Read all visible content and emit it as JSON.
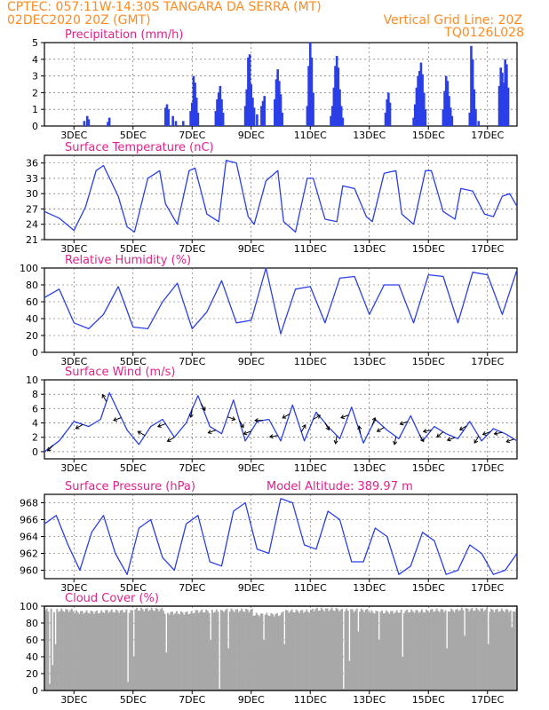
{
  "header": {
    "line1": "CPTEC:   057:11W-14:30S   TANGARA DA SERRA (MT)",
    "line2": "02DEC2020 20Z (GMT)",
    "grid_note": "Vertical Grid Line: 20Z",
    "code": "TQ0126L028"
  },
  "colors": {
    "header": "#ff8a1f",
    "titles": "#e0218a",
    "series": "#2a3fe8",
    "cloud": "#a8a8a8",
    "grid": "#555555"
  },
  "chart_data": [
    {
      "type": "bar",
      "title": "Precipitation (mm/h)",
      "xaxis": {
        "ticks": [
          "3DEC",
          "5DEC",
          "7DEC",
          "9DEC",
          "11DEC",
          "13DEC",
          "15DEC",
          "17DEC"
        ],
        "range_days": [
          0,
          15
        ]
      },
      "ylim": [
        0,
        5
      ],
      "yticks": [
        0,
        1,
        2,
        3,
        4,
        5
      ],
      "bars": [
        [
          1.35,
          0.3
        ],
        [
          1.45,
          0.6
        ],
        [
          1.5,
          0.4
        ],
        [
          2.15,
          0.25
        ],
        [
          2.2,
          0.5
        ],
        [
          4.1,
          1.1
        ],
        [
          4.15,
          1.3
        ],
        [
          4.2,
          1.0
        ],
        [
          4.35,
          0.6
        ],
        [
          4.45,
          0.3
        ],
        [
          4.7,
          0.3
        ],
        [
          4.95,
          0.9
        ],
        [
          5.0,
          1.4
        ],
        [
          5.05,
          3.0
        ],
        [
          5.1,
          2.6
        ],
        [
          5.15,
          1.7
        ],
        [
          5.2,
          0.8
        ],
        [
          5.8,
          0.9
        ],
        [
          5.85,
          1.6
        ],
        [
          5.9,
          2.0
        ],
        [
          5.95,
          2.4
        ],
        [
          6.0,
          1.6
        ],
        [
          6.05,
          0.8
        ],
        [
          6.8,
          1.2
        ],
        [
          6.85,
          2.2
        ],
        [
          6.9,
          4.1
        ],
        [
          6.95,
          4.3
        ],
        [
          7.0,
          2.5
        ],
        [
          7.05,
          1.7
        ],
        [
          7.1,
          1.1
        ],
        [
          7.2,
          0.7
        ],
        [
          7.35,
          1.2
        ],
        [
          7.4,
          1.5
        ],
        [
          7.45,
          1.8
        ],
        [
          7.8,
          1.6
        ],
        [
          7.85,
          2.8
        ],
        [
          7.9,
          3.4
        ],
        [
          7.95,
          2.7
        ],
        [
          8.0,
          1.9
        ],
        [
          8.05,
          0.8
        ],
        [
          8.9,
          1.2
        ],
        [
          8.95,
          3.6
        ],
        [
          9.0,
          5.0
        ],
        [
          9.05,
          4.1
        ],
        [
          9.1,
          2.0
        ],
        [
          9.7,
          0.6
        ],
        [
          9.75,
          1.2
        ],
        [
          9.8,
          2.3
        ],
        [
          9.85,
          3.6
        ],
        [
          9.9,
          4.2
        ],
        [
          9.95,
          3.5
        ],
        [
          10.0,
          2.2
        ],
        [
          10.05,
          1.2
        ],
        [
          10.1,
          0.5
        ],
        [
          11.55,
          0.8
        ],
        [
          11.6,
          1.6
        ],
        [
          11.65,
          2.0
        ],
        [
          11.7,
          1.4
        ],
        [
          12.5,
          0.5
        ],
        [
          12.55,
          1.3
        ],
        [
          12.6,
          2.3
        ],
        [
          12.65,
          3.0
        ],
        [
          12.7,
          3.3
        ],
        [
          12.75,
          3.8
        ],
        [
          12.8,
          3.1
        ],
        [
          12.85,
          2.0
        ],
        [
          12.9,
          1.0
        ],
        [
          13.5,
          1.0
        ],
        [
          13.55,
          2.1
        ],
        [
          13.6,
          3.0
        ],
        [
          13.65,
          2.7
        ],
        [
          13.7,
          1.8
        ],
        [
          13.75,
          1.1
        ],
        [
          13.8,
          0.6
        ],
        [
          14.4,
          0.8
        ],
        [
          14.45,
          4.8
        ],
        [
          14.5,
          4.0
        ],
        [
          14.55,
          2.2
        ],
        [
          14.6,
          1.0
        ],
        [
          14.7,
          0.3
        ],
        [
          15.4,
          2.4
        ],
        [
          15.45,
          3.5
        ],
        [
          15.5,
          3.2
        ],
        [
          15.55,
          2.6
        ],
        [
          15.6,
          4.0
        ],
        [
          15.65,
          3.7
        ],
        [
          15.7,
          2.3
        ]
      ],
      "unit_note": "mm/h"
    },
    {
      "type": "line",
      "title": "Surface Temperature (nC)",
      "ylim": [
        21,
        37.5
      ],
      "yticks": [
        21,
        24,
        27,
        30,
        33,
        36
      ],
      "x": [
        0,
        0.5,
        1,
        1.4,
        1.75,
        2,
        2.5,
        2.8,
        3.05,
        3.5,
        3.9,
        4.1,
        4.5,
        4.9,
        5.1,
        5.5,
        5.9,
        6.15,
        6.5,
        6.9,
        7.1,
        7.5,
        7.9,
        8.1,
        8.5,
        8.9,
        9.1,
        9.5,
        9.9,
        10.1,
        10.5,
        10.9,
        11.1,
        11.5,
        11.9,
        12.1,
        12.5,
        12.9,
        13.1,
        13.5,
        13.9,
        14.1,
        14.5,
        14.9,
        15.2,
        15.5,
        15.75,
        16
      ],
      "y": [
        26.5,
        25.2,
        22.8,
        27.5,
        34.5,
        35.5,
        29.5,
        23.5,
        22.5,
        33.0,
        34.5,
        28.0,
        24.0,
        34.5,
        35.0,
        26.0,
        24.5,
        36.5,
        36.0,
        25.5,
        24.0,
        32.5,
        34.5,
        24.5,
        22.5,
        33.0,
        33.0,
        25.0,
        24.5,
        31.5,
        31.0,
        25.5,
        24.5,
        34.0,
        34.5,
        26.0,
        24.0,
        34.5,
        34.5,
        26.5,
        25.0,
        31.0,
        30.5,
        26.0,
        25.5,
        29.5,
        30.0,
        27.5
      ]
    },
    {
      "type": "line",
      "title": "Relative Humidity (%)",
      "ylim": [
        0,
        100
      ],
      "yticks": [
        0,
        20,
        40,
        60,
        80,
        100
      ],
      "x": [
        0,
        0.5,
        1,
        1.5,
        2,
        2.5,
        3,
        3.5,
        4,
        4.5,
        5,
        5.5,
        6,
        6.5,
        7,
        7.5,
        8,
        8.5,
        9,
        9.5,
        10,
        10.5,
        11,
        11.5,
        12,
        12.5,
        13,
        13.5,
        14,
        14.5,
        15,
        15.5,
        16
      ],
      "y": [
        65,
        75,
        35,
        28,
        45,
        78,
        30,
        28,
        60,
        82,
        28,
        48,
        85,
        35,
        38,
        100,
        22,
        75,
        78,
        35,
        88,
        90,
        45,
        80,
        80,
        35,
        92,
        90,
        35,
        95,
        92,
        45,
        98
      ]
    },
    {
      "type": "line",
      "title": "Surface Wind (m/s)",
      "ylim": [
        -1,
        10
      ],
      "yticks": [
        0,
        2,
        4,
        6,
        8,
        10
      ],
      "x": [
        0,
        0.5,
        1,
        1.5,
        1.9,
        2.2,
        2.8,
        3.2,
        3.6,
        4.0,
        4.4,
        4.8,
        5.2,
        5.6,
        6.0,
        6.4,
        6.8,
        7.2,
        7.6,
        8.0,
        8.4,
        8.8,
        9.2,
        9.6,
        10.0,
        10.4,
        10.8,
        11.2,
        11.6,
        12.0,
        12.4,
        12.8,
        13.2,
        13.6,
        14.0,
        14.4,
        14.8,
        15.2,
        15.6,
        16
      ],
      "y": [
        0,
        1.5,
        4.2,
        3.5,
        4.5,
        8.2,
        3.0,
        1.0,
        3.5,
        4.5,
        2.0,
        4.0,
        7.8,
        3.5,
        2.5,
        7.2,
        1.5,
        4.2,
        4.5,
        1.5,
        6.5,
        1.5,
        5.5,
        3.5,
        1.8,
        6.2,
        1.2,
        4.5,
        3.0,
        1.8,
        5.0,
        1.5,
        3.5,
        2.5,
        1.8,
        4.2,
        1.5,
        3.2,
        2.5,
        1.5
      ],
      "arrows_x": [
        0.3,
        1.3,
        2.1,
        2.6,
        3.4,
        4.1,
        4.4,
        5.0,
        5.3,
        5.8,
        6.2,
        6.6,
        7.0,
        7.4,
        7.9,
        8.3,
        8.7,
        9.1,
        9.5,
        9.9,
        10.3,
        10.7,
        11.1,
        11.5,
        11.9,
        12.3,
        12.7,
        13.1,
        13.5,
        13.9,
        14.3,
        14.7,
        15.1,
        15.5,
        15.9
      ],
      "arrows_dir_deg": [
        225,
        210,
        120,
        200,
        150,
        200,
        210,
        260,
        300,
        200,
        340,
        300,
        200,
        180,
        190,
        210,
        60,
        30,
        300,
        260,
        200,
        100,
        70,
        210,
        260,
        200,
        300,
        190,
        220,
        200,
        210,
        240,
        200,
        190,
        200
      ]
    },
    {
      "type": "line",
      "title": "Surface Pressure (hPa)",
      "annotation": "Model Altitude: 389.97 m",
      "ylim": [
        959,
        969
      ],
      "yticks": [
        960,
        962,
        964,
        966,
        968
      ],
      "x": [
        0,
        0.4,
        0.8,
        1.2,
        1.6,
        2.0,
        2.4,
        2.8,
        3.2,
        3.6,
        4.0,
        4.4,
        4.8,
        5.2,
        5.6,
        6.0,
        6.4,
        6.8,
        7.2,
        7.6,
        8.0,
        8.4,
        8.8,
        9.2,
        9.6,
        10.0,
        10.4,
        10.8,
        11.2,
        11.6,
        12.0,
        12.4,
        12.8,
        13.2,
        13.6,
        14.0,
        14.4,
        14.8,
        15.2,
        15.6,
        16
      ],
      "y": [
        965.5,
        966.5,
        963.0,
        960.0,
        964.5,
        966.5,
        962.0,
        959.5,
        965.0,
        966.0,
        961.5,
        960.0,
        965.5,
        966.5,
        961.0,
        960.5,
        967.0,
        968.0,
        962.5,
        962.0,
        968.5,
        968.0,
        963.0,
        962.5,
        967.0,
        966.0,
        961.0,
        961.0,
        965.0,
        964.0,
        959.5,
        960.5,
        964.5,
        963.5,
        959.5,
        960.0,
        963.0,
        962.0,
        959.5,
        960.0,
        962.0
      ]
    },
    {
      "type": "area",
      "title": "Cloud Cover (%)",
      "ylim": [
        0,
        100
      ],
      "yticks": [
        0,
        20,
        40,
        60,
        80,
        100
      ],
      "x": [
        0,
        1,
        2,
        3,
        4,
        5,
        6,
        7,
        8,
        9,
        10,
        11,
        12,
        13,
        14,
        15,
        16
      ],
      "y": [
        95,
        93,
        94,
        96,
        92,
        94,
        95,
        90,
        94,
        96,
        95,
        93,
        94,
        95,
        96,
        95,
        96
      ],
      "dips": [
        [
          0.15,
          8
        ],
        [
          0.25,
          30
        ],
        [
          0.35,
          55
        ],
        [
          2.8,
          10
        ],
        [
          3.0,
          40
        ],
        [
          4.1,
          45
        ],
        [
          5.6,
          60
        ],
        [
          5.9,
          2
        ],
        [
          6.2,
          50
        ],
        [
          7.4,
          60
        ],
        [
          8.1,
          55
        ],
        [
          10.1,
          2
        ],
        [
          10.3,
          35
        ],
        [
          10.6,
          70
        ],
        [
          11.3,
          60
        ],
        [
          12.1,
          40
        ],
        [
          13.6,
          50
        ],
        [
          14.2,
          65
        ],
        [
          15.0,
          55
        ],
        [
          15.8,
          75
        ]
      ]
    }
  ]
}
